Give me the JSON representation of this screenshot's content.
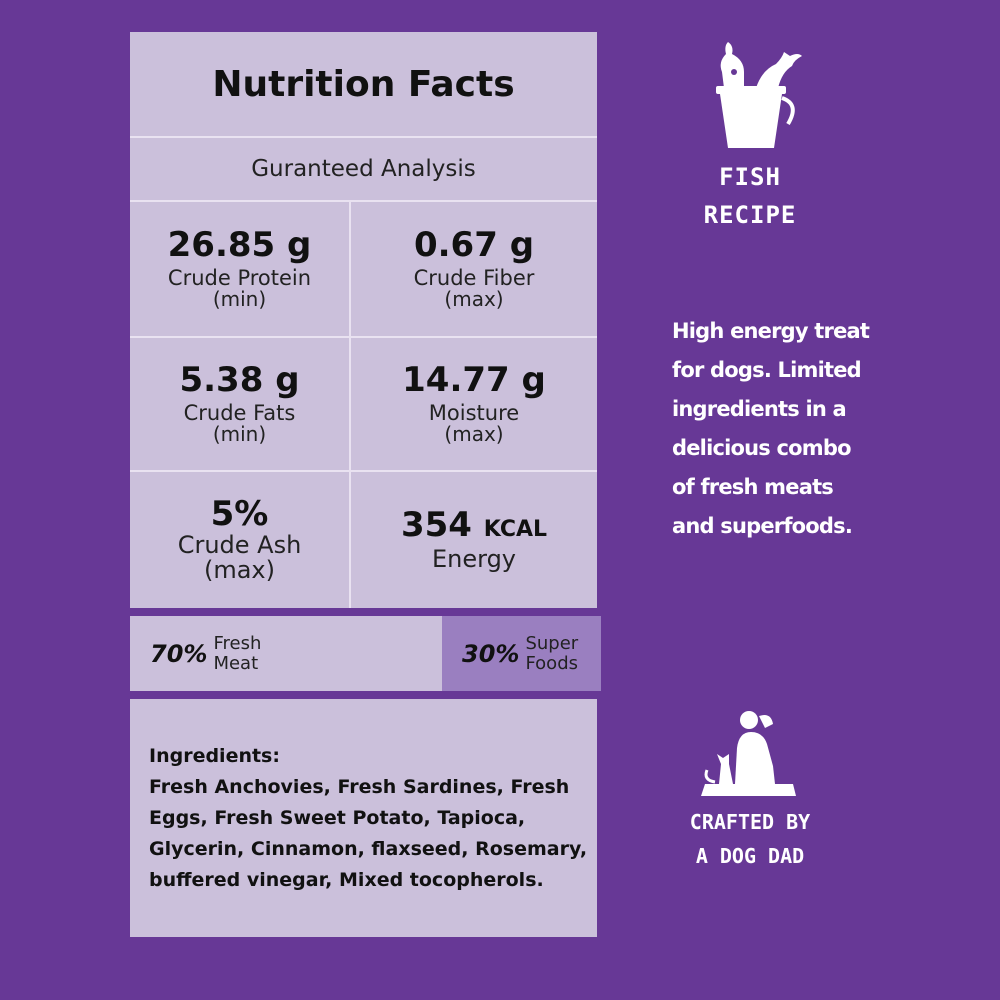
{
  "nutrition": {
    "title": "Nutrition Facts",
    "subtitle": "Guranteed Analysis",
    "protein": {
      "value": "26.85 g",
      "label": "Crude Protein",
      "qualifier": "(min)"
    },
    "fiber": {
      "value": "0.67 g",
      "label": "Crude Fiber",
      "qualifier": "(max)"
    },
    "fats": {
      "value": "5.38 g",
      "label": "Crude Fats",
      "qualifier": "(min)"
    },
    "moisture": {
      "value": "14.77 g",
      "label": "Moisture",
      "qualifier": "(max)"
    },
    "ash": {
      "value": "5%",
      "label": "Crude Ash",
      "qualifier": "(max)"
    },
    "energy": {
      "value": "354",
      "unit": "KCAL",
      "label": "Energy"
    }
  },
  "blend": {
    "meat_pct": "70%",
    "meat_line1": "Fresh",
    "meat_line2": "Meat",
    "super_pct": "30%",
    "super_line1": "Super",
    "super_line2": "Foods"
  },
  "ingredients": {
    "heading": "Ingredients:",
    "text": "Fresh Anchovies, Fresh Sardines, Fresh Eggs, Fresh Sweet Potato, Tapioca, Glycerin, Cinnamon, flaxseed, Rosemary, buffered vinegar, Mixed tocopherols."
  },
  "side": {
    "fish_line1": "FISH",
    "fish_line2": "RECIPE",
    "blurb": "High energy treat for dogs. Limited ingredients in a delicious combo of fresh meats and superfoods.",
    "crafted_line1": "CRAFTED BY",
    "crafted_line2": "A DOG DAD",
    "fish_icon": "fish-bucket-icon",
    "dog_icon": "dog-cat-silhouette-icon"
  },
  "colors": {
    "background": "#673896",
    "panel": "#cbc0db",
    "superfoods_panel": "#9a7fc0"
  }
}
